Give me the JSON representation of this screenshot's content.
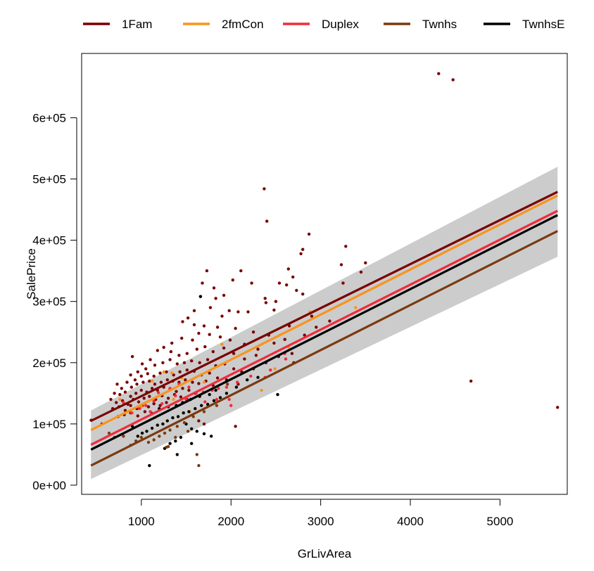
{
  "chart_data": {
    "type": "scatter",
    "xlabel": "GrLivArea",
    "ylabel": "SalePrice",
    "xlim": [
      334,
      5750
    ],
    "ylim": [
      -15000,
      705000
    ],
    "xticks": [
      1000,
      2000,
      3000,
      4000,
      5000
    ],
    "yticks": [
      0,
      100000,
      200000,
      300000,
      400000,
      500000,
      600000
    ],
    "xtick_labels": [
      "1000",
      "2000",
      "3000",
      "4000",
      "5000"
    ],
    "ytick_labels": [
      "0e+00",
      "1e+05",
      "2e+05",
      "3e+05",
      "4e+05",
      "5e+05",
      "6e+05"
    ],
    "legend": {
      "placement": "top",
      "entries": [
        {
          "label": "1Fam",
          "color": "#7a0000"
        },
        {
          "label": "2fmCon",
          "color": "#f7941d"
        },
        {
          "label": "Duplex",
          "color": "#ef2b3c"
        },
        {
          "label": "Twnhs",
          "color": "#7a3a10"
        },
        {
          "label": "TwnhsE",
          "color": "#000000"
        }
      ]
    },
    "confidence_band": {
      "color": "#cccccc",
      "x": [
        438,
        5642
      ],
      "upper": [
        122000,
        520000
      ],
      "lower": [
        10000,
        373000
      ]
    },
    "fit_lines": [
      {
        "series": "1Fam",
        "color": "#7a0000",
        "x": [
          438,
          5642
        ],
        "y": [
          105000,
          479000
        ]
      },
      {
        "series": "2fmCon",
        "color": "#f7941d",
        "x": [
          438,
          5642
        ],
        "y": [
          90000,
          473000
        ]
      },
      {
        "series": "Duplex",
        "color": "#ef2b3c",
        "x": [
          438,
          5642
        ],
        "y": [
          66000,
          448000
        ]
      },
      {
        "series": "TwnhsE",
        "color": "#000000",
        "x": [
          438,
          5642
        ],
        "y": [
          58000,
          441000
        ]
      },
      {
        "series": "Twnhs",
        "color": "#7a3a10",
        "x": [
          438,
          5642
        ],
        "y": [
          32000,
          415000
        ]
      }
    ],
    "points": {
      "1Fam": [
        [
          4316,
          672000
        ],
        [
          4476,
          662000
        ],
        [
          4676,
          170000
        ],
        [
          5642,
          127000
        ],
        [
          2370,
          484000
        ],
        [
          2400,
          431000
        ],
        [
          2870,
          410000
        ],
        [
          2800,
          385000
        ],
        [
          2780,
          378000
        ],
        [
          3280,
          390000
        ],
        [
          3500,
          363000
        ],
        [
          3450,
          348000
        ],
        [
          3230,
          360000
        ],
        [
          3250,
          330000
        ],
        [
          2640,
          353000
        ],
        [
          2690,
          340000
        ],
        [
          2620,
          327000
        ],
        [
          2540,
          330000
        ],
        [
          2730,
          318000
        ],
        [
          2800,
          312000
        ],
        [
          2390,
          298000
        ],
        [
          2500,
          300000
        ],
        [
          1730,
          350000
        ],
        [
          2110,
          350000
        ],
        [
          2020,
          335000
        ],
        [
          1810,
          322000
        ],
        [
          1680,
          330000
        ],
        [
          1830,
          305000
        ],
        [
          1920,
          310000
        ],
        [
          2230,
          330000
        ],
        [
          2380,
          305000
        ],
        [
          2480,
          286000
        ],
        [
          2190,
          283000
        ],
        [
          2080,
          283000
        ],
        [
          1980,
          285000
        ],
        [
          1900,
          276000
        ],
        [
          1770,
          290000
        ],
        [
          1660,
          308000
        ],
        [
          1590,
          285000
        ],
        [
          1520,
          273000
        ],
        [
          1460,
          267000
        ],
        [
          1590,
          262000
        ],
        [
          1700,
          260000
        ],
        [
          1850,
          258000
        ],
        [
          2050,
          256000
        ],
        [
          2250,
          250000
        ],
        [
          2420,
          245000
        ],
        [
          2650,
          260000
        ],
        [
          2900,
          276000
        ],
        [
          3100,
          268000
        ],
        [
          2950,
          258000
        ],
        [
          2820,
          245000
        ],
        [
          2600,
          238000
        ],
        [
          2480,
          232000
        ],
        [
          2300,
          222000
        ],
        [
          2150,
          230000
        ],
        [
          1990,
          237000
        ],
        [
          1880,
          242000
        ],
        [
          1760,
          246000
        ],
        [
          1640,
          248000
        ],
        [
          1570,
          237000
        ],
        [
          1450,
          240000
        ],
        [
          1340,
          232000
        ],
        [
          1250,
          225000
        ],
        [
          1180,
          220000
        ],
        [
          1330,
          218000
        ],
        [
          1420,
          212000
        ],
        [
          1510,
          215000
        ],
        [
          1620,
          222000
        ],
        [
          1710,
          226000
        ],
        [
          1800,
          218000
        ],
        [
          1920,
          224000
        ],
        [
          2030,
          215000
        ],
        [
          2150,
          206000
        ],
        [
          2280,
          212000
        ],
        [
          2390,
          200000
        ],
        [
          2530,
          210000
        ],
        [
          2680,
          215000
        ],
        [
          2700,
          200000
        ],
        [
          1100,
          205000
        ],
        [
          1010,
          198000
        ],
        [
          900,
          210000
        ],
        [
          960,
          185000
        ],
        [
          1050,
          190000
        ],
        [
          1150,
          196000
        ],
        [
          1240,
          200000
        ],
        [
          1320,
          205000
        ],
        [
          1400,
          198000
        ],
        [
          1480,
          200000
        ],
        [
          1560,
          203000
        ],
        [
          1650,
          200000
        ],
        [
          1740,
          205000
        ],
        [
          1830,
          195000
        ],
        [
          1930,
          198000
        ],
        [
          2030,
          190000
        ],
        [
          2120,
          185000
        ],
        [
          2250,
          190000
        ],
        [
          880,
          180000
        ],
        [
          930,
          172000
        ],
        [
          1000,
          178000
        ],
        [
          1070,
          182000
        ],
        [
          1140,
          178000
        ],
        [
          1210,
          183000
        ],
        [
          1280,
          185000
        ],
        [
          1360,
          180000
        ],
        [
          1430,
          185000
        ],
        [
          1510,
          188000
        ],
        [
          1590,
          186000
        ],
        [
          1670,
          180000
        ],
        [
          1760,
          183000
        ],
        [
          1850,
          175000
        ],
        [
          1950,
          172000
        ],
        [
          2080,
          165000
        ],
        [
          730,
          165000
        ],
        [
          780,
          158000
        ],
        [
          840,
          168000
        ],
        [
          890,
          160000
        ],
        [
          950,
          165000
        ],
        [
          1020,
          168000
        ],
        [
          1090,
          170000
        ],
        [
          1150,
          165000
        ],
        [
          1220,
          168000
        ],
        [
          1290,
          172000
        ],
        [
          1350,
          170000
        ],
        [
          1420,
          168000
        ],
        [
          1490,
          172000
        ],
        [
          1570,
          168000
        ],
        [
          1640,
          166000
        ],
        [
          1720,
          170000
        ],
        [
          1800,
          163000
        ],
        [
          700,
          150000
        ],
        [
          760,
          148000
        ],
        [
          820,
          152000
        ],
        [
          880,
          145000
        ],
        [
          940,
          150000
        ],
        [
          1000,
          155000
        ],
        [
          1060,
          152000
        ],
        [
          1120,
          158000
        ],
        [
          1180,
          155000
        ],
        [
          1250,
          160000
        ],
        [
          1320,
          157000
        ],
        [
          1390,
          153000
        ],
        [
          1460,
          158000
        ],
        [
          1530,
          155000
        ],
        [
          1600,
          150000
        ],
        [
          660,
          140000
        ],
        [
          720,
          135000
        ],
        [
          790,
          138000
        ],
        [
          850,
          132000
        ],
        [
          910,
          140000
        ],
        [
          970,
          136000
        ],
        [
          1030,
          142000
        ],
        [
          1090,
          145000
        ],
        [
          1160,
          140000
        ],
        [
          1230,
          146000
        ],
        [
          1300,
          142000
        ],
        [
          1370,
          148000
        ],
        [
          1440,
          144000
        ],
        [
          1510,
          140000
        ],
        [
          680,
          125000
        ],
        [
          750,
          128000
        ],
        [
          820,
          122000
        ],
        [
          880,
          130000
        ],
        [
          950,
          125000
        ],
        [
          1010,
          130000
        ],
        [
          1080,
          128000
        ],
        [
          1140,
          133000
        ],
        [
          1210,
          130000
        ],
        [
          1280,
          135000
        ],
        [
          740,
          112000
        ],
        [
          810,
          115000
        ],
        [
          880,
          118000
        ],
        [
          960,
          113000
        ],
        [
          1040,
          120000
        ],
        [
          1120,
          117000
        ],
        [
          440,
          106000
        ],
        [
          560,
          100000
        ],
        [
          2050,
          96000
        ],
        [
          1640,
          105000
        ],
        [
          1700,
          100000
        ]
      ],
      "2fmCon": [
        [
          3390,
          290000
        ],
        [
          2880,
          283000
        ],
        [
          2640,
          225000
        ],
        [
          2490,
          190000
        ],
        [
          1900,
          230000
        ],
        [
          1250,
          185000
        ],
        [
          1340,
          183000
        ],
        [
          2340,
          155000
        ],
        [
          1120,
          170000
        ],
        [
          760,
          140000
        ],
        [
          1360,
          140000
        ],
        [
          1000,
          128000
        ],
        [
          1150,
          110000
        ],
        [
          1540,
          120000
        ],
        [
          1700,
          168000
        ],
        [
          1450,
          175000
        ],
        [
          1820,
          160000
        ],
        [
          900,
          118000
        ]
      ],
      "Duplex": [
        [
          2600,
          215000
        ],
        [
          2610,
          206000
        ],
        [
          2440,
          188000
        ],
        [
          2380,
          176000
        ],
        [
          2220,
          178000
        ],
        [
          2070,
          168000
        ],
        [
          1950,
          160000
        ],
        [
          1860,
          158000
        ],
        [
          1790,
          155000
        ],
        [
          1690,
          152000
        ],
        [
          1610,
          150000
        ],
        [
          1530,
          160000
        ],
        [
          1420,
          165000
        ],
        [
          1320,
          158000
        ],
        [
          1190,
          151000
        ],
        [
          1140,
          137000
        ],
        [
          1050,
          130000
        ],
        [
          980,
          125000
        ],
        [
          890,
          118000
        ],
        [
          800,
          135000
        ],
        [
          1710,
          136000
        ],
        [
          1840,
          140000
        ],
        [
          1980,
          140000
        ],
        [
          1500,
          140000
        ],
        [
          1380,
          146000
        ],
        [
          1230,
          133000
        ],
        [
          2000,
          130000
        ],
        [
          1100,
          120000
        ]
      ],
      "TwnhsE": [
        [
          1660,
          308000
        ],
        [
          2520,
          148000
        ],
        [
          2300,
          176000
        ],
        [
          2180,
          172000
        ],
        [
          2060,
          160000
        ],
        [
          1950,
          150000
        ],
        [
          1880,
          143000
        ],
        [
          1810,
          138000
        ],
        [
          1740,
          132000
        ],
        [
          1670,
          130000
        ],
        [
          1600,
          125000
        ],
        [
          1530,
          120000
        ],
        [
          1470,
          118000
        ],
        [
          1410,
          112000
        ],
        [
          1350,
          110000
        ],
        [
          1290,
          105000
        ],
        [
          1240,
          100000
        ],
        [
          1180,
          98000
        ],
        [
          1120,
          93000
        ],
        [
          1060,
          88000
        ],
        [
          1010,
          85000
        ],
        [
          960,
          80000
        ],
        [
          900,
          96000
        ],
        [
          1500,
          100000
        ],
        [
          1560,
          92000
        ],
        [
          1620,
          88000
        ],
        [
          1700,
          84000
        ],
        [
          1780,
          80000
        ],
        [
          1440,
          78000
        ],
        [
          1380,
          72000
        ],
        [
          1320,
          68000
        ],
        [
          1260,
          60000
        ],
        [
          1400,
          50000
        ],
        [
          1560,
          68000
        ],
        [
          1090,
          32000
        ],
        [
          1830,
          155000
        ],
        [
          1760,
          148000
        ],
        [
          1650,
          145000
        ],
        [
          1550,
          140000
        ],
        [
          1460,
          135000
        ],
        [
          1390,
          130000
        ],
        [
          1300,
          128000
        ],
        [
          1200,
          125000
        ]
      ],
      "Twnhs": [
        [
          1960,
          165000
        ],
        [
          1840,
          130000
        ],
        [
          1700,
          120000
        ],
        [
          1580,
          112000
        ],
        [
          1480,
          102000
        ],
        [
          1400,
          96000
        ],
        [
          1320,
          90000
        ],
        [
          1260,
          85000
        ],
        [
          1200,
          80000
        ],
        [
          1140,
          74000
        ],
        [
          1080,
          70000
        ],
        [
          1000,
          78000
        ],
        [
          940,
          72000
        ],
        [
          880,
          65000
        ],
        [
          800,
          80000
        ],
        [
          700,
          78000
        ],
        [
          640,
          85000
        ],
        [
          1280,
          62000
        ],
        [
          1620,
          50000
        ],
        [
          1640,
          32000
        ],
        [
          1520,
          88000
        ],
        [
          1380,
          78000
        ],
        [
          1300,
          63000
        ]
      ]
    }
  }
}
